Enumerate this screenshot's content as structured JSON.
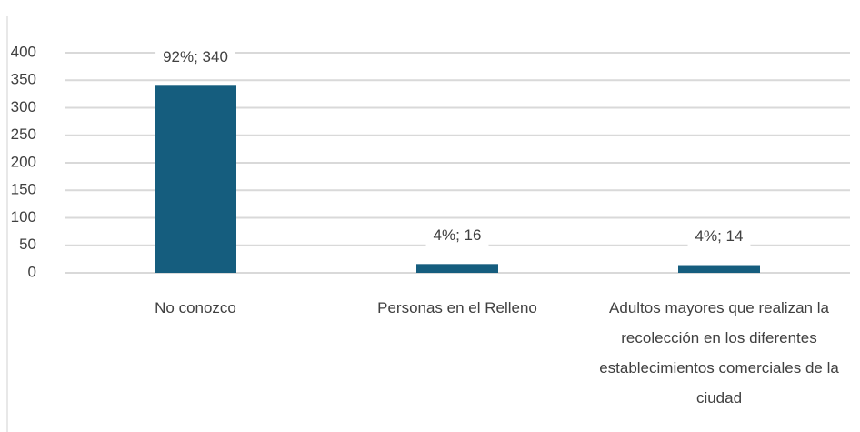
{
  "chart_data": {
    "type": "bar",
    "categories": [
      "No conozco",
      "Personas en el Relleno",
      "Adultos mayores que realizan la recolección en los diferentes establecimientos comerciales de la ciudad"
    ],
    "values": [
      340,
      16,
      14
    ],
    "value_labels": [
      "92%; 340",
      "4%; 16",
      "4%; 14"
    ],
    "color": "#155d7e",
    "ylim": [
      0,
      400
    ],
    "yticks": [
      0,
      50,
      100,
      150,
      200,
      250,
      300,
      350,
      400
    ],
    "grid": true
  }
}
